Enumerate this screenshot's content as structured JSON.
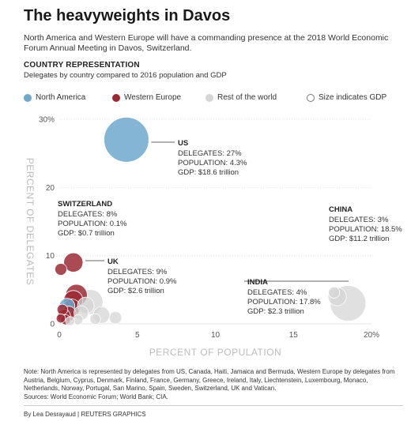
{
  "header": {
    "title": "The heavyweights in Davos",
    "subtitle": "North America and Western Europe will have a commanding presence at the 2018 World Economic Forum Annual Meeting in Davos, Switzerland.",
    "section_title": "COUNTRY REPRESENTATION",
    "section_sub": "Delegates by country compared to 2016 population and GDP"
  },
  "legend": {
    "north_america": "North America",
    "western_europe": "Western Europe",
    "rest": "Rest of the world",
    "size": "Size indicates GDP"
  },
  "colors": {
    "north_america": "#6fa8cc",
    "western_europe": "#9b2a35",
    "rest": "#d6d6d6",
    "axis_text": "#bbbbbb"
  },
  "chart_data": {
    "type": "scatter",
    "xlabel": "PERCENT OF POPULATION",
    "ylabel": "PERCENT OF DELEGATES",
    "xlim": [
      0,
      20
    ],
    "ylim": [
      0,
      30
    ],
    "x_ticks": [
      "0",
      "5",
      "10",
      "15",
      "20%"
    ],
    "y_ticks": [
      "0",
      "10",
      "20",
      "30%"
    ],
    "size_encodes": "GDP (trillion $)",
    "points": [
      {
        "name": "US",
        "region": "north_america",
        "x": 4.3,
        "y": 27,
        "gdp": 18.6
      },
      {
        "name": "China",
        "region": "rest",
        "x": 18.5,
        "y": 3,
        "gdp": 11.2
      },
      {
        "name": "India",
        "region": "rest",
        "x": 17.8,
        "y": 4,
        "gdp": 2.3
      },
      {
        "name": "UK",
        "region": "western_europe",
        "x": 0.9,
        "y": 9,
        "gdp": 2.6
      },
      {
        "name": "Switzerland",
        "region": "western_europe",
        "x": 0.1,
        "y": 8,
        "gdp": 0.7
      },
      {
        "region": "western_europe",
        "x": 1.1,
        "y": 4.2,
        "gdp": 3.5
      },
      {
        "region": "western_europe",
        "x": 0.9,
        "y": 3.5,
        "gdp": 2.5
      },
      {
        "region": "western_europe",
        "x": 0.8,
        "y": 2.4,
        "gdp": 1.9
      },
      {
        "region": "western_europe",
        "x": 0.6,
        "y": 1.5,
        "gdp": 1.3
      },
      {
        "region": "western_europe",
        "x": 0.3,
        "y": 1.2,
        "gdp": 0.9
      },
      {
        "region": "western_europe",
        "x": 0.2,
        "y": 2.1,
        "gdp": 0.5
      },
      {
        "region": "western_europe",
        "x": 0.1,
        "y": 0.8,
        "gdp": 0.3
      },
      {
        "region": "western_europe",
        "x": 0.4,
        "y": 0.6,
        "gdp": 0.4
      },
      {
        "region": "north_america",
        "x": 0.5,
        "y": 2.6,
        "gdp": 1.5
      },
      {
        "region": "rest",
        "x": 2.0,
        "y": 3.2,
        "gdp": 4.9
      },
      {
        "region": "rest",
        "x": 1.7,
        "y": 2.7,
        "gdp": 1.8
      },
      {
        "region": "rest",
        "x": 1.4,
        "y": 1.6,
        "gdp": 1.2
      },
      {
        "region": "rest",
        "x": 2.7,
        "y": 1.3,
        "gdp": 1.8
      },
      {
        "region": "rest",
        "x": 3.6,
        "y": 0.9,
        "gdp": 0.8
      },
      {
        "region": "rest",
        "x": 2.3,
        "y": 0.7,
        "gdp": 0.5
      },
      {
        "region": "rest",
        "x": 1.2,
        "y": 0.6,
        "gdp": 0.4
      },
      {
        "region": "rest",
        "x": 0.7,
        "y": 0.4,
        "gdp": 0.3
      },
      {
        "region": "rest",
        "x": 17.6,
        "y": 4.6,
        "gdp": 0.6
      }
    ],
    "annotations": [
      {
        "target": "US",
        "name": "US",
        "lines": [
          "DELEGATES: 27%",
          "POPULATION: 4.3%",
          "GDP: $18.6 trillion"
        ]
      },
      {
        "target": "Switzerland",
        "name": "SWITZERLAND",
        "lines": [
          "DELEGATES: 8%",
          "POPULATION: 0.1%",
          "GDP: $0.7 trillion"
        ]
      },
      {
        "target": "UK",
        "name": "UK",
        "lines": [
          "DELEGATES: 9%",
          "POPULATION: 0.9%",
          "GDP: $2.6 trillion"
        ]
      },
      {
        "target": "China",
        "name": "CHINA",
        "lines": [
          "DELEGATES: 3%",
          "POPULATION: 18.5%",
          "GDP: $11.2 trillion"
        ]
      },
      {
        "target": "India",
        "name": "INDIA",
        "lines": [
          "DELEGATES: 4%",
          "POPULATION: 17.8%",
          "GDP: $2.3 trillion"
        ]
      }
    ]
  },
  "footer": {
    "note": "Note: North America is represented by delegates from US, Canada, Haiti, Jamaica and Bermuda, Western Europe by delegates from Austria, Belgium, Cyprus, Denmark, Finland, France, Germany, Greece, Ireland, Italy, Liechtenstein, Luxembourg, Monaco, Netherlands, Norway, Portugal, San Marino, Spain, Sweden, Switzerland, UK and Vatican.",
    "sources": "Sources: World Economic Forum; World Bank; CIA.",
    "byline": "By Lea Desrayaud | REUTERS GRAPHICS"
  }
}
